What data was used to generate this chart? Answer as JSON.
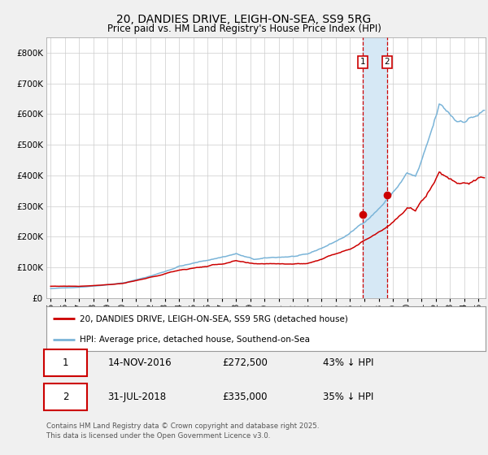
{
  "title": "20, DANDIES DRIVE, LEIGH-ON-SEA, SS9 5RG",
  "subtitle": "Price paid vs. HM Land Registry's House Price Index (HPI)",
  "legend_line1": "20, DANDIES DRIVE, LEIGH-ON-SEA, SS9 5RG (detached house)",
  "legend_line2": "HPI: Average price, detached house, Southend-on-Sea",
  "footer": "Contains HM Land Registry data © Crown copyright and database right 2025.\nThis data is licensed under the Open Government Licence v3.0.",
  "hpi_color": "#7ab4d8",
  "price_color": "#cc0000",
  "marker_color": "#cc0000",
  "vline_color": "#cc0000",
  "vshade_color": "#d6e8f5",
  "sale1_date": 2016.87,
  "sale1_price": 272500,
  "sale2_date": 2018.58,
  "sale2_price": 335000,
  "table_row1": [
    "1",
    "14-NOV-2016",
    "£272,500",
    "43% ↓ HPI"
  ],
  "table_row2": [
    "2",
    "31-JUL-2018",
    "£335,000",
    "35% ↓ HPI"
  ],
  "ylim": [
    0,
    850000
  ],
  "xlim_start": 1994.7,
  "xlim_end": 2025.5,
  "background_color": "#f0f0f0",
  "plot_bg_color": "#ffffff",
  "grid_color": "#cccccc",
  "box_color": "#cc0000"
}
